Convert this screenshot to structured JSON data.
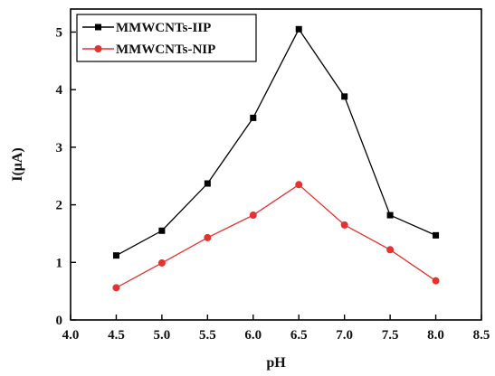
{
  "chart_data": {
    "type": "line",
    "xlabel": "pH",
    "ylabel": "I(μA)",
    "xlim": [
      4.0,
      8.5
    ],
    "ylim": [
      0,
      5.4
    ],
    "xticks": [
      4.0,
      4.5,
      5.0,
      5.5,
      6.0,
      6.5,
      7.0,
      7.5,
      8.0,
      8.5
    ],
    "xtick_labels": [
      "4.0",
      "4.5",
      "5.0",
      "5.5",
      "6.0",
      "6.5",
      "7.0",
      "7.5",
      "8.0",
      "8.5"
    ],
    "yticks": [
      0,
      1,
      2,
      3,
      4,
      5
    ],
    "ytick_labels": [
      "0",
      "1",
      "2",
      "3",
      "4",
      "5"
    ],
    "grid": false,
    "legend_position": "top-left",
    "x": [
      4.5,
      5.0,
      5.5,
      6.0,
      6.5,
      7.0,
      7.5,
      8.0
    ],
    "series": [
      {
        "name": "MMWCNTs-IIP",
        "color": "#000000",
        "marker": "square",
        "values": [
          1.12,
          1.55,
          2.37,
          3.51,
          5.05,
          3.88,
          1.82,
          1.47
        ]
      },
      {
        "name": "MMWCNTs-NIP",
        "color": "#e8302e",
        "marker": "circle",
        "values": [
          0.56,
          0.99,
          1.43,
          1.82,
          2.35,
          1.65,
          1.22,
          0.68
        ]
      }
    ]
  }
}
